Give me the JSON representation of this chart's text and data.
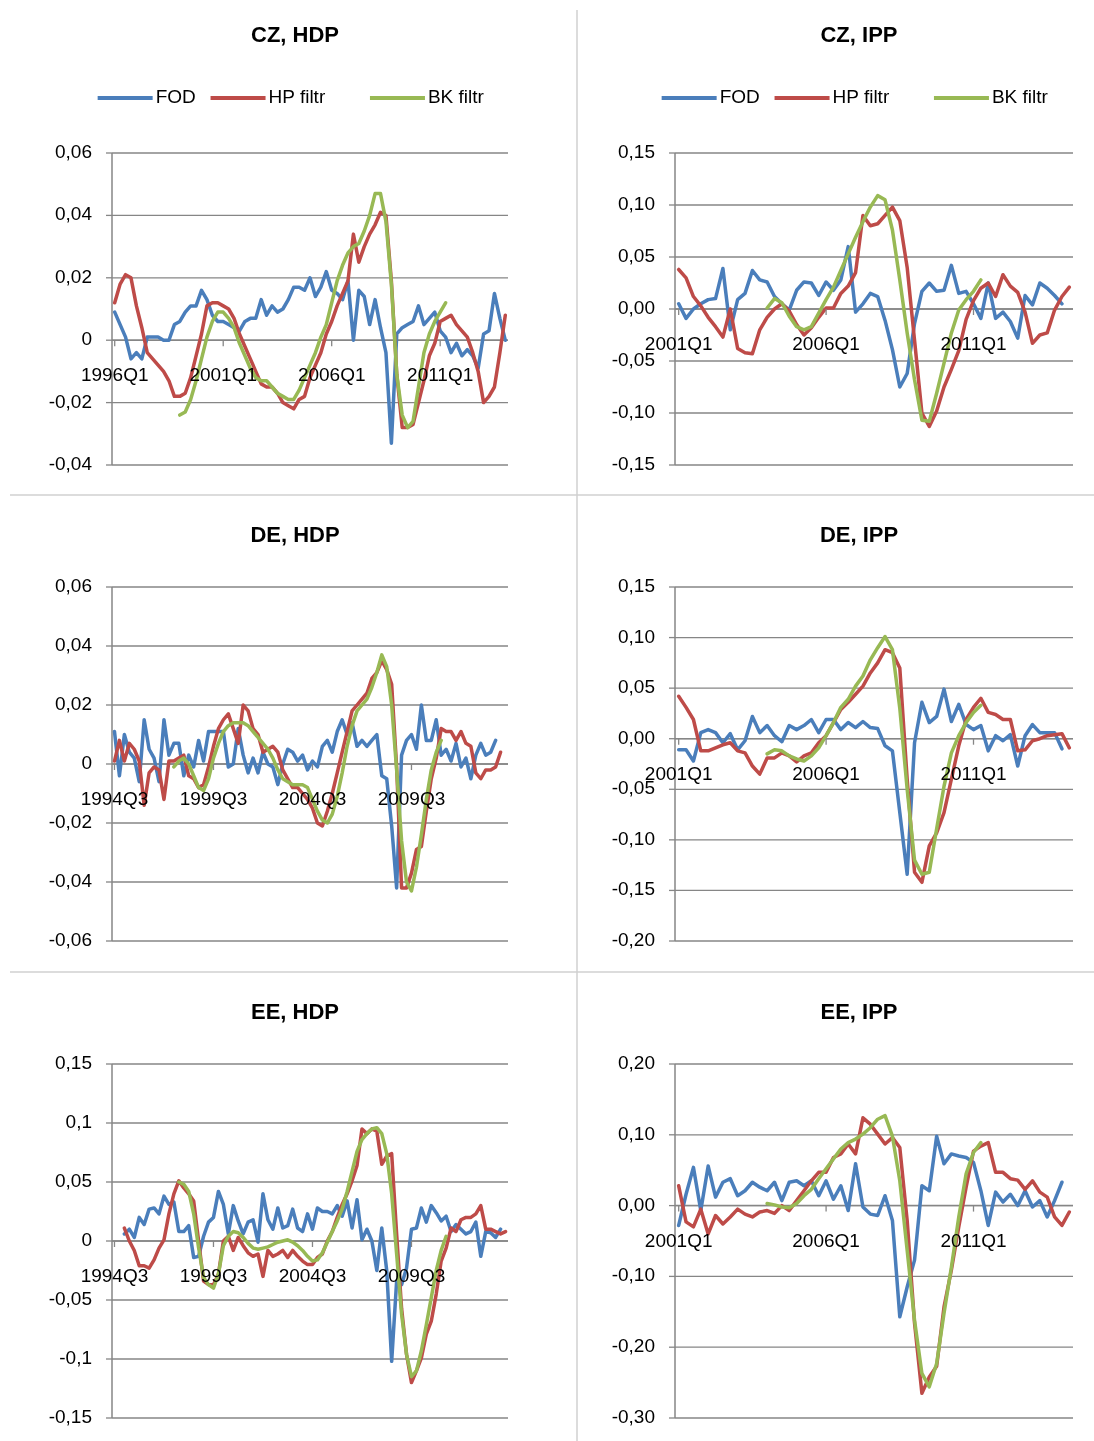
{
  "chart_data": [
    {
      "type": "line",
      "title": "CZ, HDP",
      "grid": "y",
      "legend": "top",
      "categories": [
        "1996Q1",
        null,
        null,
        null,
        null,
        null,
        null,
        null,
        null,
        null,
        null,
        null,
        null,
        null,
        null,
        null,
        null,
        null,
        null,
        null,
        "2001Q1",
        null,
        null,
        null,
        null,
        null,
        null,
        null,
        null,
        null,
        null,
        null,
        null,
        null,
        null,
        null,
        null,
        null,
        null,
        null,
        "2006Q1",
        null,
        null,
        null,
        null,
        null,
        null,
        null,
        null,
        null,
        null,
        null,
        null,
        null,
        null,
        null,
        null,
        null,
        null,
        null,
        "2011Q1",
        null,
        null,
        null,
        null,
        null,
        null,
        null,
        null,
        null,
        null,
        null,
        null
      ],
      "ylim": [
        -0.04,
        0.06
      ],
      "yticks": [
        {
          "value": -0.04,
          "label": "-0,04"
        },
        {
          "value": -0.02,
          "label": "-0,02"
        },
        {
          "value": 0,
          "label": "0"
        },
        {
          "value": 0.02,
          "label": "0,02"
        },
        {
          "value": 0.04,
          "label": "0,04"
        },
        {
          "value": 0.06,
          "label": "0,06"
        }
      ],
      "series": [
        {
          "name": "FOD",
          "color": "#4a7ebb",
          "values": [
            0.009,
            0.005,
            0.001,
            -0.006,
            -0.004,
            -0.006,
            0.001,
            0.001,
            0.001,
            0,
            0,
            0.005,
            0.006,
            0.009,
            0.011,
            0.011,
            0.016,
            0.013,
            0.008,
            0.006,
            0.006,
            0.005,
            0.004,
            0.003,
            0.006,
            0.007,
            0.007,
            0.013,
            0.008,
            0.011,
            0.009,
            0.01,
            0.013,
            0.017,
            0.017,
            0.016,
            0.02,
            0.014,
            0.017,
            0.022,
            0.016,
            0.015,
            0.013,
            0.019,
            0,
            0.016,
            0.014,
            0.005,
            0.013,
            0.004,
            -0.004,
            -0.033,
            0.002,
            0.004,
            0.005,
            0.006,
            0.011,
            0.005,
            0.007,
            0.009,
            0.003,
            0.001,
            -0.004,
            -0.001,
            -0.005,
            -0.003,
            -0.005,
            -0.009,
            0.002,
            0.003,
            0.015,
            0.007,
            0
          ]
        },
        {
          "name": "HP filtr",
          "color": "#be4b48",
          "values": [
            0.012,
            0.018,
            0.021,
            0.02,
            0.011,
            0.004,
            -0.004,
            -0.006,
            -0.008,
            -0.01,
            -0.013,
            -0.018,
            -0.018,
            -0.017,
            -0.012,
            -0.005,
            0.002,
            0.011,
            0.012,
            0.012,
            0.011,
            0.01,
            0.007,
            0.002,
            -0.002,
            -0.006,
            -0.01,
            -0.014,
            -0.015,
            -0.015,
            -0.017,
            -0.02,
            -0.021,
            -0.022,
            -0.019,
            -0.018,
            -0.012,
            -0.008,
            -0.004,
            0.002,
            0.006,
            0.011,
            0.015,
            0.019,
            0.034,
            0.025,
            0.03,
            0.034,
            0.037,
            0.041,
            0.04,
            0.019,
            -0.011,
            -0.028,
            -0.028,
            -0.027,
            -0.02,
            -0.013,
            -0.005,
            -0.001,
            0.006,
            0.007,
            0.008,
            0.005,
            0.003,
            0.001,
            -0.004,
            -0.01,
            -0.02,
            -0.018,
            -0.015,
            -0.004,
            0.008
          ]
        },
        {
          "name": "BK filtr",
          "color": "#98b954",
          "values": [
            null,
            null,
            null,
            null,
            null,
            null,
            null,
            null,
            null,
            null,
            null,
            null,
            -0.024,
            -0.023,
            -0.019,
            -0.013,
            -0.006,
            0.001,
            0.006,
            0.009,
            0.009,
            0.007,
            0.004,
            -0.001,
            -0.005,
            -0.009,
            -0.012,
            -0.013,
            -0.013,
            -0.015,
            -0.017,
            -0.018,
            -0.019,
            -0.019,
            -0.016,
            -0.012,
            -0.008,
            -0.004,
            0.001,
            0.005,
            0.012,
            0.019,
            0.024,
            0.028,
            0.03,
            0.031,
            0.035,
            0.04,
            0.047,
            0.047,
            0.038,
            0.018,
            -0.011,
            -0.024,
            -0.028,
            -0.026,
            -0.015,
            -0.004,
            0.002,
            0.006,
            0.009,
            0.012,
            null,
            null,
            null,
            null,
            null,
            null,
            null,
            null,
            null,
            null,
            null
          ]
        }
      ]
    },
    {
      "type": "line",
      "title": "CZ, IPP",
      "grid": "y",
      "legend": "top",
      "categories": [
        "2001Q1",
        null,
        null,
        null,
        null,
        null,
        null,
        null,
        null,
        null,
        null,
        null,
        null,
        null,
        null,
        null,
        null,
        null,
        null,
        null,
        "2006Q1",
        null,
        null,
        null,
        null,
        null,
        null,
        null,
        null,
        null,
        null,
        null,
        null,
        null,
        null,
        null,
        null,
        null,
        null,
        null,
        "2011Q1",
        null,
        null,
        null,
        null,
        null,
        null,
        null,
        null,
        null,
        null,
        null,
        null,
        null
      ],
      "ylim": [
        -0.15,
        0.15
      ],
      "yticks": [
        {
          "value": -0.15,
          "label": "-0,15"
        },
        {
          "value": -0.1,
          "label": "-0,10"
        },
        {
          "value": -0.05,
          "label": "-0,05"
        },
        {
          "value": 0,
          "label": "0,00"
        },
        {
          "value": 0.05,
          "label": "0,05"
        },
        {
          "value": 0.1,
          "label": "0,10"
        },
        {
          "value": 0.15,
          "label": "0,15"
        }
      ],
      "series": [
        {
          "name": "FOD",
          "color": "#4a7ebb",
          "values": [
            0.005,
            -0.009,
            0,
            0.005,
            0.009,
            0.01,
            0.039,
            -0.02,
            0.009,
            0.015,
            0.037,
            0.028,
            0.026,
            0.012,
            0.005,
            -0.001,
            0.018,
            0.026,
            0.025,
            0.013,
            0.026,
            0.018,
            0.028,
            0.06,
            -0.003,
            0.005,
            0.015,
            0.012,
            -0.011,
            -0.039,
            -0.075,
            -0.062,
            -0.014,
            0.017,
            0.025,
            0.017,
            0.018,
            0.042,
            0.015,
            0.017,
            0.005,
            -0.009,
            0.025,
            -0.009,
            -0.003,
            -0.012,
            -0.028,
            0.013,
            0.004,
            0.025,
            0.02,
            0.013,
            0.005,
            null
          ]
        },
        {
          "name": "HP filtr",
          "color": "#be4b48",
          "values": [
            0.038,
            0.03,
            0.012,
            0.003,
            -0.008,
            -0.017,
            -0.027,
            0,
            -0.038,
            -0.042,
            -0.043,
            -0.02,
            -0.008,
            0,
            0.005,
            -0.002,
            -0.015,
            -0.025,
            -0.018,
            -0.008,
            0.001,
            0.001,
            0.015,
            0.022,
            0.035,
            0.09,
            0.08,
            0.082,
            0.09,
            0.098,
            0.085,
            0.04,
            -0.03,
            -0.1,
            -0.113,
            -0.098,
            -0.075,
            -0.058,
            -0.04,
            -0.01,
            0.008,
            0.02,
            0.025,
            0.012,
            0.033,
            0.022,
            0.016,
            -0.003,
            -0.033,
            -0.025,
            -0.023,
            -0.001,
            0.012,
            0.021
          ]
        },
        {
          "name": "BK filtr",
          "color": "#98b954",
          "values": [
            null,
            null,
            null,
            null,
            null,
            null,
            null,
            null,
            null,
            null,
            null,
            null,
            0.001,
            0.01,
            0.006,
            -0.007,
            -0.017,
            -0.02,
            -0.017,
            -0.004,
            0.009,
            0.021,
            0.037,
            0.053,
            0.069,
            0.084,
            0.098,
            0.109,
            0.105,
            0.076,
            0.028,
            -0.023,
            -0.068,
            -0.107,
            -0.108,
            -0.081,
            -0.052,
            -0.023,
            -0.001,
            0.009,
            0.017,
            0.028,
            null,
            null,
            null,
            null,
            null,
            null,
            null,
            null,
            null,
            null,
            null,
            null
          ]
        }
      ]
    },
    {
      "type": "line",
      "title": "DE, HDP",
      "grid": "y",
      "categories": [
        "1994Q3",
        null,
        null,
        null,
        null,
        null,
        null,
        null,
        null,
        null,
        null,
        null,
        null,
        null,
        null,
        null,
        null,
        null,
        null,
        null,
        "1999Q3",
        null,
        null,
        null,
        null,
        null,
        null,
        null,
        null,
        null,
        null,
        null,
        null,
        null,
        null,
        null,
        null,
        null,
        null,
        null,
        "2004Q3",
        null,
        null,
        null,
        null,
        null,
        null,
        null,
        null,
        null,
        null,
        null,
        null,
        null,
        null,
        null,
        null,
        null,
        null,
        null,
        "2009Q3",
        null,
        null,
        null,
        null,
        null,
        null,
        null,
        null,
        null,
        null,
        null,
        null,
        null,
        null,
        null,
        null,
        null,
        null,
        null
      ],
      "ylim": [
        -0.06,
        0.06
      ],
      "yticks": [
        {
          "value": -0.06,
          "label": "-0,06"
        },
        {
          "value": -0.04,
          "label": "-0,04"
        },
        {
          "value": -0.02,
          "label": "-0,02"
        },
        {
          "value": 0,
          "label": "0"
        },
        {
          "value": 0.02,
          "label": "0,02"
        },
        {
          "value": 0.04,
          "label": "0,04"
        },
        {
          "value": 0.06,
          "label": "0,06"
        }
      ],
      "series": [
        {
          "color": "#4a7ebb",
          "values": [
            0.011,
            -0.004,
            0.01,
            0.004,
            0.002,
            -0.006,
            0.015,
            0.005,
            0.002,
            -0.006,
            0.015,
            0.003,
            0.007,
            0.007,
            -0.004,
            0.003,
            -0.001,
            0.008,
            0.001,
            0.011,
            0.011,
            0.011,
            0.011,
            -0.001,
            0,
            0.012,
            0.003,
            -0.003,
            0.002,
            -0.003,
            0.004,
            0,
            -0.001,
            -0.007,
            0,
            0.005,
            0.004,
            0.001,
            0.003,
            -0.002,
            0.001,
            -0.001,
            0.006,
            0.008,
            0.004,
            0.011,
            0.015,
            0.01,
            0.014,
            0.006,
            0.008,
            0.006,
            0.008,
            0.01,
            -0.004,
            -0.005,
            -0.021,
            -0.042,
            0.003,
            0.008,
            0.01,
            0.005,
            0.02,
            0.008,
            0.008,
            0.015,
            0.003,
            0.005,
            0.001,
            0.007,
            -0.001,
            0.002,
            -0.005,
            0.003,
            0.007,
            0.003,
            0.004,
            0.008,
            null,
            null
          ]
        },
        {
          "color": "#be4b48",
          "values": [
            0.001,
            0.008,
            0.001,
            0.007,
            0.005,
            0.001,
            -0.014,
            -0.003,
            -0.001,
            -0.002,
            -0.012,
            0.001,
            0.001,
            0.002,
            0.003,
            -0.004,
            -0.005,
            -0.008,
            -0.007,
            -0.001,
            0.006,
            0.012,
            0.015,
            0.017,
            0.012,
            0.007,
            0.02,
            0.018,
            0.012,
            0.01,
            0.004,
            0.005,
            0.006,
            0.004,
            -0.002,
            -0.005,
            -0.008,
            -0.008,
            -0.01,
            -0.012,
            -0.015,
            -0.02,
            -0.021,
            -0.016,
            -0.01,
            -0.003,
            0.004,
            0.011,
            0.018,
            0.02,
            0.022,
            0.024,
            0.029,
            0.031,
            0.035,
            0.032,
            0.027,
            -0.001,
            -0.042,
            -0.042,
            -0.037,
            -0.029,
            -0.028,
            -0.016,
            -0.005,
            0.002,
            0.012,
            0.011,
            0.011,
            0.008,
            0.011,
            0.007,
            0.006,
            -0.003,
            -0.005,
            -0.002,
            -0.002,
            -0.001,
            0.004,
            null
          ]
        },
        {
          "color": "#98b954",
          "values": [
            null,
            null,
            null,
            null,
            null,
            null,
            null,
            null,
            null,
            null,
            null,
            null,
            -0.001,
            0.001,
            0.002,
            0,
            -0.004,
            -0.008,
            -0.009,
            -0.005,
            0.002,
            0.007,
            0.011,
            0.013,
            0.014,
            0.014,
            0.014,
            0.013,
            0.011,
            0.009,
            0.007,
            0.005,
            0.002,
            -0.002,
            -0.005,
            -0.006,
            -0.007,
            -0.007,
            -0.007,
            -0.008,
            -0.012,
            -0.016,
            -0.019,
            -0.02,
            -0.017,
            -0.011,
            -0.003,
            0.006,
            0.013,
            0.018,
            0.02,
            0.022,
            0.026,
            0.031,
            0.037,
            0.033,
            0.02,
            -0.002,
            -0.026,
            -0.04,
            -0.043,
            -0.035,
            -0.024,
            -0.012,
            -0.002,
            0.004,
            0.008,
            null,
            null,
            null,
            null,
            null,
            null,
            null,
            null,
            null,
            null,
            null,
            null,
            null
          ]
        }
      ]
    },
    {
      "type": "line",
      "title": "DE, IPP",
      "grid": "y",
      "categories": [
        "2001Q1",
        null,
        null,
        null,
        null,
        null,
        null,
        null,
        null,
        null,
        null,
        null,
        null,
        null,
        null,
        null,
        null,
        null,
        null,
        null,
        "2006Q1",
        null,
        null,
        null,
        null,
        null,
        null,
        null,
        null,
        null,
        null,
        null,
        null,
        null,
        null,
        null,
        null,
        null,
        null,
        null,
        "2011Q1",
        null,
        null,
        null,
        null,
        null,
        null,
        null,
        null,
        null,
        null,
        null,
        null,
        null
      ],
      "ylim": [
        -0.2,
        0.15
      ],
      "yticks": [
        {
          "value": -0.2,
          "label": "-0,20"
        },
        {
          "value": -0.15,
          "label": "-0,15"
        },
        {
          "value": -0.1,
          "label": "-0,10"
        },
        {
          "value": -0.05,
          "label": "-0,05"
        },
        {
          "value": 0,
          "label": "0,00"
        },
        {
          "value": 0.05,
          "label": "0,05"
        },
        {
          "value": 0.1,
          "label": "0,10"
        },
        {
          "value": 0.15,
          "label": "0,15"
        }
      ],
      "series": [
        {
          "color": "#4a7ebb",
          "values": [
            -0.011,
            -0.011,
            -0.022,
            0.006,
            0.009,
            0.006,
            -0.004,
            0.005,
            -0.011,
            -0.002,
            0.022,
            0.006,
            0.013,
            0.003,
            -0.003,
            0.013,
            0.009,
            0.013,
            0.019,
            0.006,
            0.019,
            0.019,
            0.009,
            0.016,
            0.011,
            0.017,
            0.011,
            0.01,
            -0.007,
            -0.012,
            -0.073,
            -0.134,
            -0.004,
            0.036,
            0.016,
            0.022,
            0.049,
            0.017,
            0.034,
            0.014,
            0.009,
            0.013,
            -0.012,
            0.003,
            -0.002,
            0.004,
            -0.027,
            0.003,
            0.014,
            0.006,
            0.006,
            0.006,
            -0.01,
            null
          ]
        },
        {
          "color": "#be4b48",
          "values": [
            0.042,
            0.031,
            0.019,
            -0.012,
            -0.012,
            -0.009,
            -0.006,
            -0.004,
            -0.012,
            -0.014,
            -0.027,
            -0.035,
            -0.019,
            -0.019,
            -0.014,
            -0.017,
            -0.023,
            -0.017,
            -0.014,
            -0.004,
            0.003,
            0.016,
            0.029,
            0.036,
            0.044,
            0.052,
            0.065,
            0.075,
            0.088,
            0.085,
            0.07,
            -0.04,
            -0.132,
            -0.142,
            -0.106,
            -0.093,
            -0.073,
            -0.04,
            -0.007,
            0.019,
            0.031,
            0.04,
            0.026,
            0.024,
            0.019,
            0.019,
            -0.012,
            -0.011,
            -0.002,
            0,
            0.003,
            0.004,
            0.005,
            -0.009
          ]
        },
        {
          "color": "#98b954",
          "values": [
            null,
            null,
            null,
            null,
            null,
            null,
            null,
            null,
            null,
            null,
            null,
            null,
            -0.015,
            -0.011,
            -0.012,
            -0.017,
            -0.02,
            -0.022,
            -0.017,
            -0.009,
            0.003,
            0.016,
            0.031,
            0.039,
            0.052,
            0.062,
            0.078,
            0.09,
            0.101,
            0.088,
            0.03,
            -0.05,
            -0.12,
            -0.134,
            -0.132,
            -0.089,
            -0.047,
            -0.014,
            0.003,
            0.016,
            0.026,
            0.033,
            null,
            null,
            null,
            null,
            null,
            null,
            null,
            null,
            null,
            null,
            null,
            null
          ]
        }
      ]
    },
    {
      "type": "line",
      "title": "EE, HDP",
      "grid": "y",
      "categories": [
        "1994Q3",
        null,
        null,
        null,
        null,
        null,
        null,
        null,
        null,
        null,
        null,
        null,
        null,
        null,
        null,
        null,
        null,
        null,
        null,
        null,
        "1999Q3",
        null,
        null,
        null,
        null,
        null,
        null,
        null,
        null,
        null,
        null,
        null,
        null,
        null,
        null,
        null,
        null,
        null,
        null,
        null,
        "2004Q3",
        null,
        null,
        null,
        null,
        null,
        null,
        null,
        null,
        null,
        null,
        null,
        null,
        null,
        null,
        null,
        null,
        null,
        null,
        null,
        "2009Q3",
        null,
        null,
        null,
        null,
        null,
        null,
        null,
        null,
        null,
        null,
        null,
        null,
        null,
        null,
        null,
        null,
        null,
        null,
        null
      ],
      "ylim": [
        -0.15,
        0.15
      ],
      "yticks": [
        {
          "value": -0.15,
          "label": "-0,15"
        },
        {
          "value": -0.1,
          "label": "-0,1"
        },
        {
          "value": -0.05,
          "label": "-0,05"
        },
        {
          "value": 0,
          "label": "0"
        },
        {
          "value": 0.05,
          "label": "0,05"
        },
        {
          "value": 0.1,
          "label": "0,1"
        },
        {
          "value": 0.15,
          "label": "0,15"
        }
      ],
      "series": [
        {
          "color": "#4a7ebb",
          "values": [
            null,
            null,
            0.006,
            0.01,
            0.003,
            0.02,
            0.014,
            0.027,
            0.028,
            0.023,
            0.038,
            0.031,
            0.033,
            0.008,
            0.008,
            0.013,
            -0.014,
            -0.013,
            0.004,
            0.016,
            0.02,
            0.042,
            0.031,
            0.006,
            0.03,
            0.017,
            0.006,
            0.016,
            0.018,
            -0.001,
            0.04,
            0.018,
            0.01,
            0.028,
            0.011,
            0.013,
            0.027,
            0.011,
            0.008,
            0.023,
            0.01,
            0.028,
            0.025,
            0.025,
            0.023,
            0.03,
            0.021,
            0.034,
            0.011,
            0.035,
            0.001,
            0.01,
            0,
            -0.025,
            0.011,
            -0.025,
            -0.102,
            -0.034,
            -0.037,
            -0.023,
            0.01,
            0.011,
            0.028,
            0.016,
            0.03,
            0.024,
            0.017,
            0.021,
            0.008,
            0.014,
            0.01,
            0.006,
            0.008,
            0.016,
            -0.013,
            0.008,
            0.007,
            0.003,
            0.01,
            null
          ]
        },
        {
          "color": "#be4b48",
          "values": [
            null,
            null,
            0.011,
            0,
            -0.008,
            -0.021,
            -0.021,
            -0.023,
            -0.016,
            -0.006,
            0.001,
            0.023,
            0.04,
            0.051,
            0.045,
            0.04,
            0.034,
            0,
            -0.034,
            -0.037,
            -0.037,
            -0.028,
            0,
            0.004,
            -0.008,
            0.003,
            -0.004,
            -0.01,
            -0.013,
            -0.011,
            -0.03,
            -0.008,
            -0.013,
            -0.011,
            -0.008,
            -0.014,
            -0.008,
            -0.013,
            -0.017,
            -0.02,
            -0.02,
            -0.014,
            -0.011,
            0,
            0.008,
            0.02,
            0.031,
            0.04,
            0.051,
            0.064,
            0.095,
            0.091,
            0.095,
            0.093,
            0.065,
            0.072,
            0.074,
            0.006,
            -0.057,
            -0.096,
            -0.12,
            -0.11,
            -0.099,
            -0.079,
            -0.068,
            -0.045,
            -0.017,
            -0.006,
            0.011,
            0.008,
            0.018,
            0.02,
            0.02,
            0.023,
            0.03,
            0.01,
            0.01,
            0.008,
            0.006,
            0.008
          ]
        },
        {
          "color": "#98b954",
          "values": [
            null,
            null,
            null,
            null,
            null,
            null,
            null,
            null,
            null,
            null,
            null,
            null,
            null,
            0.05,
            0.048,
            0.042,
            0.023,
            -0.006,
            -0.031,
            -0.037,
            -0.04,
            -0.028,
            -0.004,
            0.004,
            0.008,
            0.007,
            0.003,
            -0.002,
            -0.006,
            -0.007,
            -0.006,
            -0.005,
            -0.003,
            -0.001,
            0,
            0.001,
            -0.001,
            -0.004,
            -0.008,
            -0.013,
            -0.017,
            -0.016,
            -0.01,
            -0.001,
            0.008,
            0.017,
            0.027,
            0.042,
            0.059,
            0.076,
            0.086,
            0.091,
            0.095,
            0.096,
            0.091,
            0.074,
            0.04,
            -0.011,
            -0.062,
            -0.096,
            -0.115,
            -0.11,
            -0.093,
            -0.071,
            -0.048,
            -0.025,
            -0.008,
            0.004,
            null,
            null,
            null,
            null,
            null,
            null,
            null,
            null,
            null,
            null,
            null,
            null
          ]
        }
      ]
    },
    {
      "type": "line",
      "title": "EE, IPP",
      "grid": "y",
      "categories": [
        "2001Q1",
        null,
        null,
        null,
        null,
        null,
        null,
        null,
        null,
        null,
        null,
        null,
        null,
        null,
        null,
        null,
        null,
        null,
        null,
        null,
        "2006Q1",
        null,
        null,
        null,
        null,
        null,
        null,
        null,
        null,
        null,
        null,
        null,
        null,
        null,
        null,
        null,
        null,
        null,
        null,
        null,
        "2011Q1",
        null,
        null,
        null,
        null,
        null,
        null,
        null,
        null,
        null,
        null,
        null,
        null,
        null
      ],
      "ylim": [
        -0.3,
        0.2
      ],
      "yticks": [
        {
          "value": -0.3,
          "label": "-0,30"
        },
        {
          "value": -0.2,
          "label": "-0,20"
        },
        {
          "value": -0.1,
          "label": "-0,10"
        },
        {
          "value": 0,
          "label": "0,00"
        },
        {
          "value": 0.1,
          "label": "0,10"
        },
        {
          "value": 0.2,
          "label": "0,20"
        }
      ],
      "series": [
        {
          "color": "#4a7ebb",
          "values": [
            -0.028,
            0.016,
            0.054,
            -0.007,
            0.056,
            0.012,
            0.033,
            0.038,
            0.014,
            0.021,
            0.033,
            0.026,
            0.021,
            0.033,
            0.007,
            0.033,
            0.035,
            0.028,
            0.035,
            0.014,
            0.035,
            0.009,
            0.028,
            -0.007,
            0.059,
            -0.002,
            -0.012,
            -0.014,
            0.014,
            -0.021,
            -0.157,
            -0.115,
            -0.077,
            0.028,
            0.021,
            0.098,
            0.059,
            0.073,
            0.07,
            0.068,
            0.061,
            0.021,
            -0.028,
            0.019,
            0.005,
            0.016,
            0,
            0.021,
            -0.002,
            0.007,
            -0.016,
            0.007,
            0.033,
            null
          ]
        },
        {
          "color": "#be4b48",
          "values": [
            0.028,
            -0.023,
            -0.03,
            -0.005,
            -0.04,
            -0.014,
            -0.026,
            -0.016,
            -0.005,
            -0.012,
            -0.016,
            -0.009,
            -0.007,
            -0.011,
            0,
            -0.007,
            0.007,
            0.021,
            0.035,
            0.047,
            0.047,
            0.068,
            0.073,
            0.087,
            0.073,
            0.124,
            0.115,
            0.101,
            0.087,
            0.096,
            0.082,
            -0.021,
            -0.166,
            -0.265,
            -0.242,
            -0.227,
            -0.143,
            -0.091,
            -0.03,
            0.026,
            0.077,
            0.084,
            0.089,
            0.047,
            0.047,
            0.038,
            0.036,
            0.023,
            0.035,
            0.019,
            0.012,
            -0.016,
            -0.028,
            -0.009
          ]
        },
        {
          "color": "#98b954",
          "values": [
            null,
            null,
            null,
            null,
            null,
            null,
            null,
            null,
            null,
            null,
            null,
            null,
            0.003,
            0.001,
            -0.002,
            -0.003,
            0.003,
            0.014,
            0.023,
            0.038,
            0.052,
            0.066,
            0.08,
            0.089,
            0.094,
            0.101,
            0.11,
            0.122,
            0.127,
            0.098,
            0.035,
            -0.063,
            -0.162,
            -0.237,
            -0.256,
            -0.223,
            -0.152,
            -0.087,
            -0.016,
            0.045,
            0.075,
            0.089,
            null,
            null,
            null,
            null,
            null,
            null,
            null,
            null,
            null,
            null,
            null,
            null
          ]
        }
      ]
    }
  ]
}
